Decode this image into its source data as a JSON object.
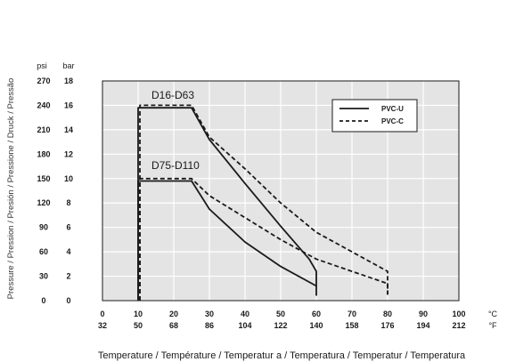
{
  "chart_data": {
    "type": "line",
    "ylabel": "Pressure / Pression / Presión / Pressione / Druck / Pressão",
    "xlabel": "Temperature / Température / Temperatur a / Temperatura / Temperatur / Temperatura",
    "y_units": {
      "psi": "psi",
      "bar": "bar"
    },
    "x_units": {
      "celsius": "°C",
      "fahrenheit": "°F"
    },
    "x_ticks_c": [
      "0",
      "10",
      "20",
      "30",
      "40",
      "50",
      "60",
      "70",
      "80",
      "90",
      "100"
    ],
    "x_ticks_f": [
      "32",
      "50",
      "68",
      "86",
      "104",
      "122",
      "140",
      "158",
      "176",
      "194",
      "212"
    ],
    "y_ticks_bar": [
      "0",
      "2",
      "4",
      "6",
      "8",
      "10",
      "12",
      "14",
      "16",
      "18"
    ],
    "y_ticks_psi": [
      "0",
      "30",
      "60",
      "90",
      "120",
      "150",
      "180",
      "210",
      "240",
      "270"
    ],
    "xlim": [
      0,
      100
    ],
    "ylim": [
      0,
      18
    ],
    "grid": true,
    "annotations": [
      "D16-D63",
      "D75-D110"
    ],
    "legend": {
      "position": "top-right",
      "entries": [
        {
          "label": "PVC-U",
          "style": "solid"
        },
        {
          "label": "PVC-C",
          "style": "dashed"
        }
      ]
    },
    "series": [
      {
        "name": "PVC-U",
        "group": "D16-D63",
        "style": "solid",
        "x": [
          10,
          10,
          25,
          30,
          40,
          50,
          58,
          60,
          60
        ],
        "y": [
          0,
          15.8,
          15.8,
          13.2,
          9.6,
          6.1,
          3.4,
          2.4,
          1.2
        ]
      },
      {
        "name": "PVC-C",
        "group": "D16-D63",
        "style": "dashed",
        "x": [
          10.5,
          10.5,
          25,
          30,
          40,
          50,
          60,
          70,
          80,
          80
        ],
        "y": [
          0,
          16,
          16,
          13.4,
          10.8,
          8,
          5.6,
          4,
          2.4,
          0.4
        ]
      },
      {
        "name": "PVC-U",
        "group": "D75-D110",
        "style": "solid",
        "x": [
          10,
          10,
          25,
          30,
          40,
          50,
          60,
          60
        ],
        "y": [
          0,
          9.8,
          9.8,
          7.5,
          4.8,
          2.8,
          1.2,
          0.4
        ]
      },
      {
        "name": "PVC-C",
        "group": "D75-D110",
        "style": "dashed",
        "x": [
          10.5,
          10.5,
          25,
          30,
          40,
          50,
          60,
          70,
          80,
          80
        ],
        "y": [
          0,
          10,
          10,
          8.6,
          6.8,
          5,
          3.4,
          2.4,
          1.4,
          0.5
        ]
      }
    ]
  }
}
